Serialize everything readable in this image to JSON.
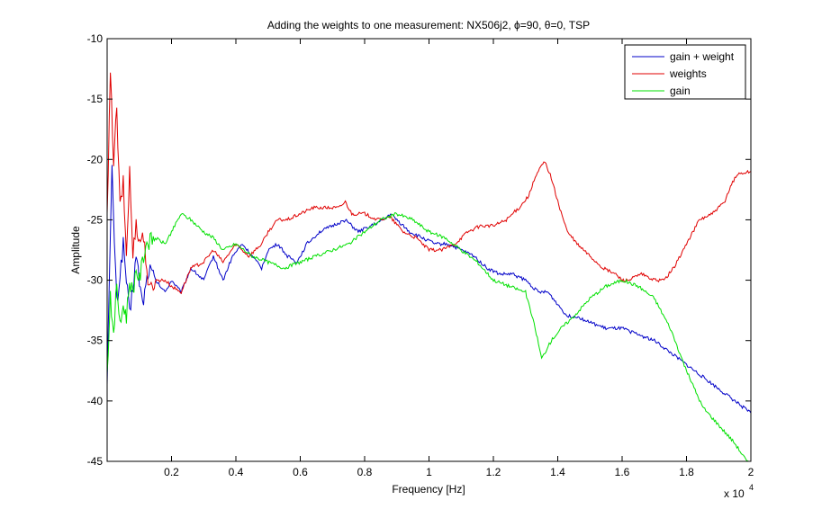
{
  "chart_data": {
    "type": "line",
    "title": "Adding the weights to one measurement: NX506j2, ϕ=90, θ=0, TSP",
    "xlabel": "Frequency [Hz]",
    "ylabel": "Amplitude",
    "x_exponent_label": "x 10",
    "x_exponent_power": "4",
    "xlim": [
      0,
      20000
    ],
    "ylim": [
      -45,
      -10
    ],
    "xticks": [
      2000,
      4000,
      6000,
      8000,
      10000,
      12000,
      14000,
      16000,
      18000,
      20000
    ],
    "xtick_labels": [
      "0.2",
      "0.4",
      "0.6",
      "0.8",
      "1",
      "1.2",
      "1.4",
      "1.6",
      "1.8",
      "2"
    ],
    "yticks": [
      -45,
      -40,
      -35,
      -30,
      -25,
      -20,
      -15,
      -10
    ],
    "ytick_labels": [
      "-45",
      "-40",
      "-35",
      "-30",
      "-25",
      "-20",
      "-15",
      "-10"
    ],
    "grid": false,
    "legend_position": "top-right",
    "series": [
      {
        "name": "gain + weight",
        "color": "#0000c8",
        "x": [
          0,
          150,
          300,
          500,
          700,
          900,
          1100,
          1300,
          1500,
          1800,
          2000,
          2300,
          2600,
          3000,
          3300,
          3600,
          3900,
          4200,
          4500,
          4800,
          5000,
          5300,
          5600,
          5900,
          6200,
          6600,
          7000,
          7400,
          7800,
          8200,
          8600,
          8800,
          9000,
          9400,
          9800,
          10200,
          10600,
          11000,
          11400,
          11800,
          12200,
          12600,
          13000,
          13400,
          13700,
          14000,
          14300,
          14600,
          15000,
          15500,
          16000,
          16500,
          17000,
          17500,
          18000,
          18500,
          19000,
          19500,
          20000
        ],
        "y": [
          -38,
          -21,
          -32,
          -27,
          -33,
          -28,
          -32,
          -29,
          -30,
          -31,
          -30,
          -31,
          -29,
          -30,
          -28,
          -30,
          -28,
          -27,
          -28,
          -29,
          -27.5,
          -27,
          -28,
          -28.5,
          -27,
          -26,
          -25.5,
          -25,
          -26,
          -25.5,
          -25,
          -24.5,
          -25,
          -26,
          -26.5,
          -27,
          -27,
          -27.5,
          -28,
          -29,
          -29.5,
          -29.5,
          -30,
          -31,
          -31,
          -32,
          -33,
          -33,
          -33.5,
          -34,
          -34,
          -34.5,
          -35,
          -36,
          -37,
          -38,
          -39,
          -40,
          -41
        ]
      },
      {
        "name": "weights",
        "color": "#e00000",
        "x": [
          0,
          100,
          200,
          300,
          400,
          500,
          600,
          700,
          800,
          900,
          1000,
          1100,
          1200,
          1300,
          1500,
          1800,
          2000,
          2300,
          2600,
          3000,
          3300,
          3600,
          4000,
          4400,
          4800,
          5000,
          5300,
          5600,
          6000,
          6400,
          6800,
          7200,
          7400,
          7600,
          8000,
          8400,
          8800,
          9200,
          9600,
          10000,
          10400,
          10800,
          11200,
          11600,
          12000,
          12400,
          12800,
          13100,
          13300,
          13500,
          13600,
          13800,
          14000,
          14300,
          14600,
          15000,
          15400,
          15800,
          16000,
          16200,
          16600,
          17000,
          17300,
          17600,
          18000,
          18400,
          18800,
          19200,
          19400,
          19600,
          20000
        ],
        "y": [
          -25,
          -13,
          -20,
          -16,
          -24,
          -22,
          -28,
          -21,
          -28,
          -25,
          -27,
          -26,
          -28,
          -31,
          -30,
          -30,
          -30.5,
          -31,
          -29,
          -28.5,
          -27.5,
          -28.5,
          -27,
          -28,
          -27,
          -26,
          -25,
          -25,
          -24.5,
          -24,
          -24,
          -24,
          -23.5,
          -24.5,
          -24.5,
          -25,
          -24.8,
          -26,
          -26.5,
          -27.5,
          -27.5,
          -27,
          -26,
          -25.5,
          -25.5,
          -25,
          -24,
          -23,
          -21.5,
          -20.5,
          -20.2,
          -21.5,
          -23.5,
          -26,
          -27,
          -28,
          -29,
          -29.5,
          -30,
          -30,
          -29.5,
          -30,
          -30,
          -29,
          -27,
          -25,
          -24.5,
          -23.5,
          -22,
          -21.2,
          -21
        ]
      },
      {
        "name": "gain",
        "color": "#00e000",
        "x": [
          0,
          100,
          200,
          300,
          400,
          500,
          600,
          700,
          800,
          900,
          1000,
          1200,
          1500,
          1800,
          2000,
          2300,
          2600,
          3000,
          3300,
          3600,
          4000,
          4500,
          5000,
          5500,
          6000,
          6500,
          7000,
          7500,
          8000,
          8500,
          9000,
          9500,
          10000,
          10500,
          11000,
          11500,
          12000,
          12500,
          13000,
          13300,
          13500,
          13800,
          14100,
          14500,
          15000,
          15500,
          16000,
          16500,
          17000,
          17500,
          18000,
          18500,
          19000,
          19500,
          20000
        ],
        "y": [
          -38,
          -31,
          -35,
          -30,
          -34,
          -32,
          -33,
          -30,
          -31,
          -29,
          -30,
          -27,
          -26.5,
          -27,
          -26,
          -24.5,
          -25,
          -26,
          -26.5,
          -27.5,
          -27,
          -28,
          -28.5,
          -29,
          -28.5,
          -28,
          -27.5,
          -27,
          -26,
          -25,
          -24.5,
          -25,
          -26,
          -26.5,
          -27.5,
          -28.5,
          -30,
          -30.5,
          -31,
          -34,
          -36.5,
          -35,
          -34,
          -33,
          -31.5,
          -30.5,
          -30,
          -30.5,
          -31.5,
          -34,
          -37.5,
          -40.5,
          -42,
          -43.5,
          -45.5
        ]
      }
    ]
  }
}
